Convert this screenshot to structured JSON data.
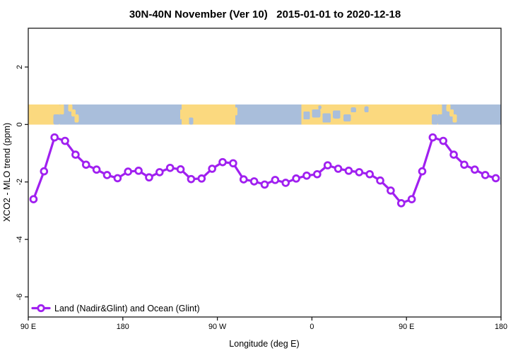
{
  "title": "30N-40N November (Ver 10)   2015-01-01 to 2020-12-18",
  "chart_data": {
    "type": "line",
    "title": "30N-40N November (Ver 10)   2015-01-01 to 2020-12-18",
    "xlabel": "Longitude (deg E)",
    "ylabel": "XCO2 - MLO trend (ppm)",
    "xlim": [
      90,
      540
    ],
    "ylim": [
      -6.7,
      3.35
    ],
    "grid": false,
    "x_ticks": [
      {
        "value": 90,
        "label": "90 E"
      },
      {
        "value": 180,
        "label": "180"
      },
      {
        "value": 270,
        "label": "90 W"
      },
      {
        "value": 360,
        "label": "0"
      },
      {
        "value": 450,
        "label": "90 E"
      },
      {
        "value": 540,
        "label": "180"
      }
    ],
    "y_ticks": [
      {
        "value": 2,
        "label": "2"
      },
      {
        "value": 0,
        "label": "0"
      },
      {
        "value": -2,
        "label": "-2"
      },
      {
        "value": -4,
        "label": "-4"
      },
      {
        "value": -6,
        "label": "-6"
      }
    ],
    "legend": {
      "position": "bottom-left",
      "entries": [
        "Land (Nadir&Glint) and Ocean (Glint)"
      ]
    },
    "series": [
      {
        "name": "Land (Nadir&Glint) and Ocean (Glint)",
        "color": "#A020F0",
        "marker": "open-circle",
        "x": [
          95,
          105,
          115,
          125,
          135,
          145,
          155,
          165,
          175,
          185,
          195,
          205,
          215,
          225,
          235,
          245,
          255,
          265,
          275,
          285,
          295,
          305,
          315,
          325,
          335,
          345,
          355,
          365,
          375,
          385,
          395,
          405,
          415,
          425,
          435,
          445,
          455,
          465,
          475,
          485,
          495,
          505,
          515,
          525,
          535
        ],
        "y": [
          -2.6,
          -1.63,
          -0.45,
          -0.57,
          -1.05,
          -1.4,
          -1.57,
          -1.76,
          -1.87,
          -1.64,
          -1.61,
          -1.84,
          -1.66,
          -1.51,
          -1.56,
          -1.9,
          -1.88,
          -1.54,
          -1.31,
          -1.35,
          -1.91,
          -1.98,
          -2.09,
          -1.93,
          -2.03,
          -1.88,
          -1.78,
          -1.73,
          -1.42,
          -1.54,
          -1.61,
          -1.66,
          -1.73,
          -1.95,
          -2.3,
          -2.74,
          -2.6,
          -1.63,
          -0.45,
          -0.57,
          -1.05,
          -1.4,
          -1.57,
          -1.76,
          -1.87
        ]
      }
    ],
    "map_strip": {
      "description": "land-ocean strip for 30N-40N band",
      "ocean_color": "#A9BEDB",
      "land_color": "#FBD97F",
      "value_range": [
        0,
        0.7
      ],
      "land_segments": [
        [
          90,
          120
        ],
        [
          236,
          287
        ],
        [
          350,
          480
        ]
      ],
      "island_patches": [
        [
          120,
          124,
          0.0,
          0.5
        ],
        [
          128,
          132,
          0.0,
          0.35
        ],
        [
          131,
          135,
          0.25,
          0.6
        ],
        [
          134,
          138,
          0.5,
          0.9
        ],
        [
          234.5,
          236,
          0.25,
          0.75
        ],
        [
          287,
          289,
          0.15,
          0.55
        ],
        [
          480,
          484,
          0.0,
          0.5
        ],
        [
          488,
          492,
          0.0,
          0.35
        ],
        [
          491,
          495,
          0.25,
          0.6
        ],
        [
          494,
          498,
          0.5,
          0.9
        ]
      ],
      "sea_patches": [
        [
          114,
          120,
          0.5,
          1.0
        ],
        [
          243,
          247,
          0.65,
          1.0
        ],
        [
          352,
          358,
          0.35,
          0.75
        ],
        [
          360,
          368,
          0.25,
          0.65
        ],
        [
          366,
          369,
          0.05,
          0.25
        ],
        [
          370,
          378,
          0.45,
          0.9
        ],
        [
          380,
          387,
          0.3,
          0.7
        ],
        [
          390,
          397,
          0.5,
          0.85
        ],
        [
          397,
          402,
          0.15,
          0.4
        ],
        [
          410,
          414,
          0.1,
          0.4
        ],
        [
          474,
          480,
          0.5,
          1.0
        ]
      ]
    }
  }
}
